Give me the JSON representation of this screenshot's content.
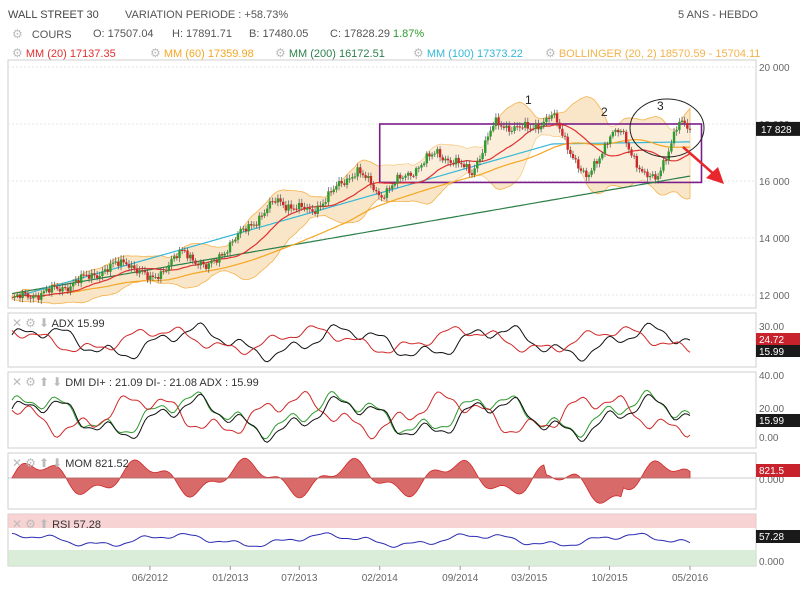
{
  "header": {
    "instrument": "WALL STREET 30",
    "variation": "VARIATION PERIODE : +58.73%",
    "period": "5 ANS - HEBDO",
    "cours_label": "COURS",
    "open": "O: 17507.04",
    "high": "H: 17891.71",
    "low": "B: 17480.05",
    "close": "C: 17828.29",
    "change": "1.87%"
  },
  "legend": {
    "mm20": "MM (20)  17137.35",
    "mm60": "MM (60)  17359.98",
    "mm200": "MM (200)  16172.51",
    "mm100": "MM (100)  17373.22",
    "bollinger": "BOLLINGER (20, 2)  18570.59 - 15704.11"
  },
  "colors": {
    "up": "#2e9b2e",
    "down": "#d02828",
    "mm20": "#e03030",
    "mm60": "#f5a623",
    "mm100": "#35b7d6",
    "mm200": "#2d7f4a",
    "boll": "#f4b24a",
    "box": "#7a1e8a",
    "arrow": "#e8262b",
    "badge": "#1a1a1a",
    "badge_red": "#c8232c"
  },
  "annotations": {
    "p1": "1",
    "p2": "2",
    "p3": "3"
  },
  "price_badge": "17 828",
  "indicators": {
    "adx": {
      "label": "ADX  15.99",
      "badge1": "24.72",
      "badge2": "15.99",
      "top_tick": "30.00"
    },
    "dmi": {
      "label": "DMI  DI+ : 21.09  DI- : 21.08  ADX : 15.99",
      "badge": "15.99"
    },
    "mom": {
      "label": "MOM  821.52",
      "badge": "821.5"
    },
    "rsi": {
      "label": "RSI  57.28",
      "badge": "57.28"
    }
  },
  "chart_data": [
    {
      "type": "line",
      "title": "WALL STREET 30",
      "subtitle": "5 ANS - HEBDO",
      "x_ticks": [
        "06/2012",
        "01/2013",
        "07/2013",
        "02/2014",
        "09/2014",
        "03/2015",
        "10/2015",
        "05/2016"
      ],
      "y_ticks": [
        "20 000",
        "18 000",
        "16 000",
        "14 000",
        "12 000"
      ],
      "ylim": [
        11600,
        20100
      ],
      "series": [
        {
          "name": "COURS",
          "x": [
            "2011-06",
            "2011-10",
            "2012-04",
            "2012-06",
            "2012-09",
            "2012-11",
            "2013-01",
            "2013-05",
            "2013-08",
            "2013-12",
            "2014-02",
            "2014-07",
            "2014-10",
            "2014-12",
            "2015-03",
            "2015-05",
            "2015-08",
            "2015-10",
            "2015-11",
            "2016-01",
            "2016-02",
            "2016-04",
            "2016-05"
          ],
          "values": [
            11850,
            12200,
            13200,
            12500,
            13550,
            12900,
            13800,
            15300,
            14900,
            16400,
            15500,
            17000,
            16300,
            18000,
            17800,
            18300,
            16000,
            17600,
            17700,
            16200,
            16000,
            18000,
            17828
          ]
        },
        {
          "name": "MM (200)",
          "x": [
            "2011-06",
            "2016-05"
          ],
          "values": [
            12050,
            16172.51
          ]
        },
        {
          "name": "MM (100)",
          "x": [
            "2011-06",
            "2015-05",
            "2016-05"
          ],
          "values": [
            11900,
            17300,
            17373.22
          ]
        }
      ],
      "bands": {
        "name": "BOLLINGER (20, 2)",
        "upper_last": 18570.59,
        "lower_last": 15704.11
      },
      "rectangle": {
        "x": [
          "2014-02",
          "2016-06"
        ],
        "y": [
          15950,
          18000
        ]
      }
    },
    {
      "type": "line",
      "title": "ADX",
      "y_ticks": [
        "30.00"
      ],
      "series": [
        {
          "name": "ADX",
          "last": 15.99
        }
      ],
      "badges": [
        24.72,
        15.99
      ]
    },
    {
      "type": "line",
      "title": "DMI",
      "y_ticks": [
        "40.00",
        "20.00",
        "0.00"
      ],
      "series": [
        {
          "name": "DI+",
          "last": 21.09
        },
        {
          "name": "DI-",
          "last": 21.08
        },
        {
          "name": "ADX",
          "last": 15.99
        }
      ]
    },
    {
      "type": "area",
      "title": "MOM",
      "y_ticks": [
        "0.000"
      ],
      "series": [
        {
          "name": "MOM",
          "last": 821.52
        }
      ]
    },
    {
      "type": "line",
      "title": "RSI",
      "y_ticks": [
        "0.000"
      ],
      "series": [
        {
          "name": "RSI",
          "last": 57.28
        }
      ]
    }
  ]
}
